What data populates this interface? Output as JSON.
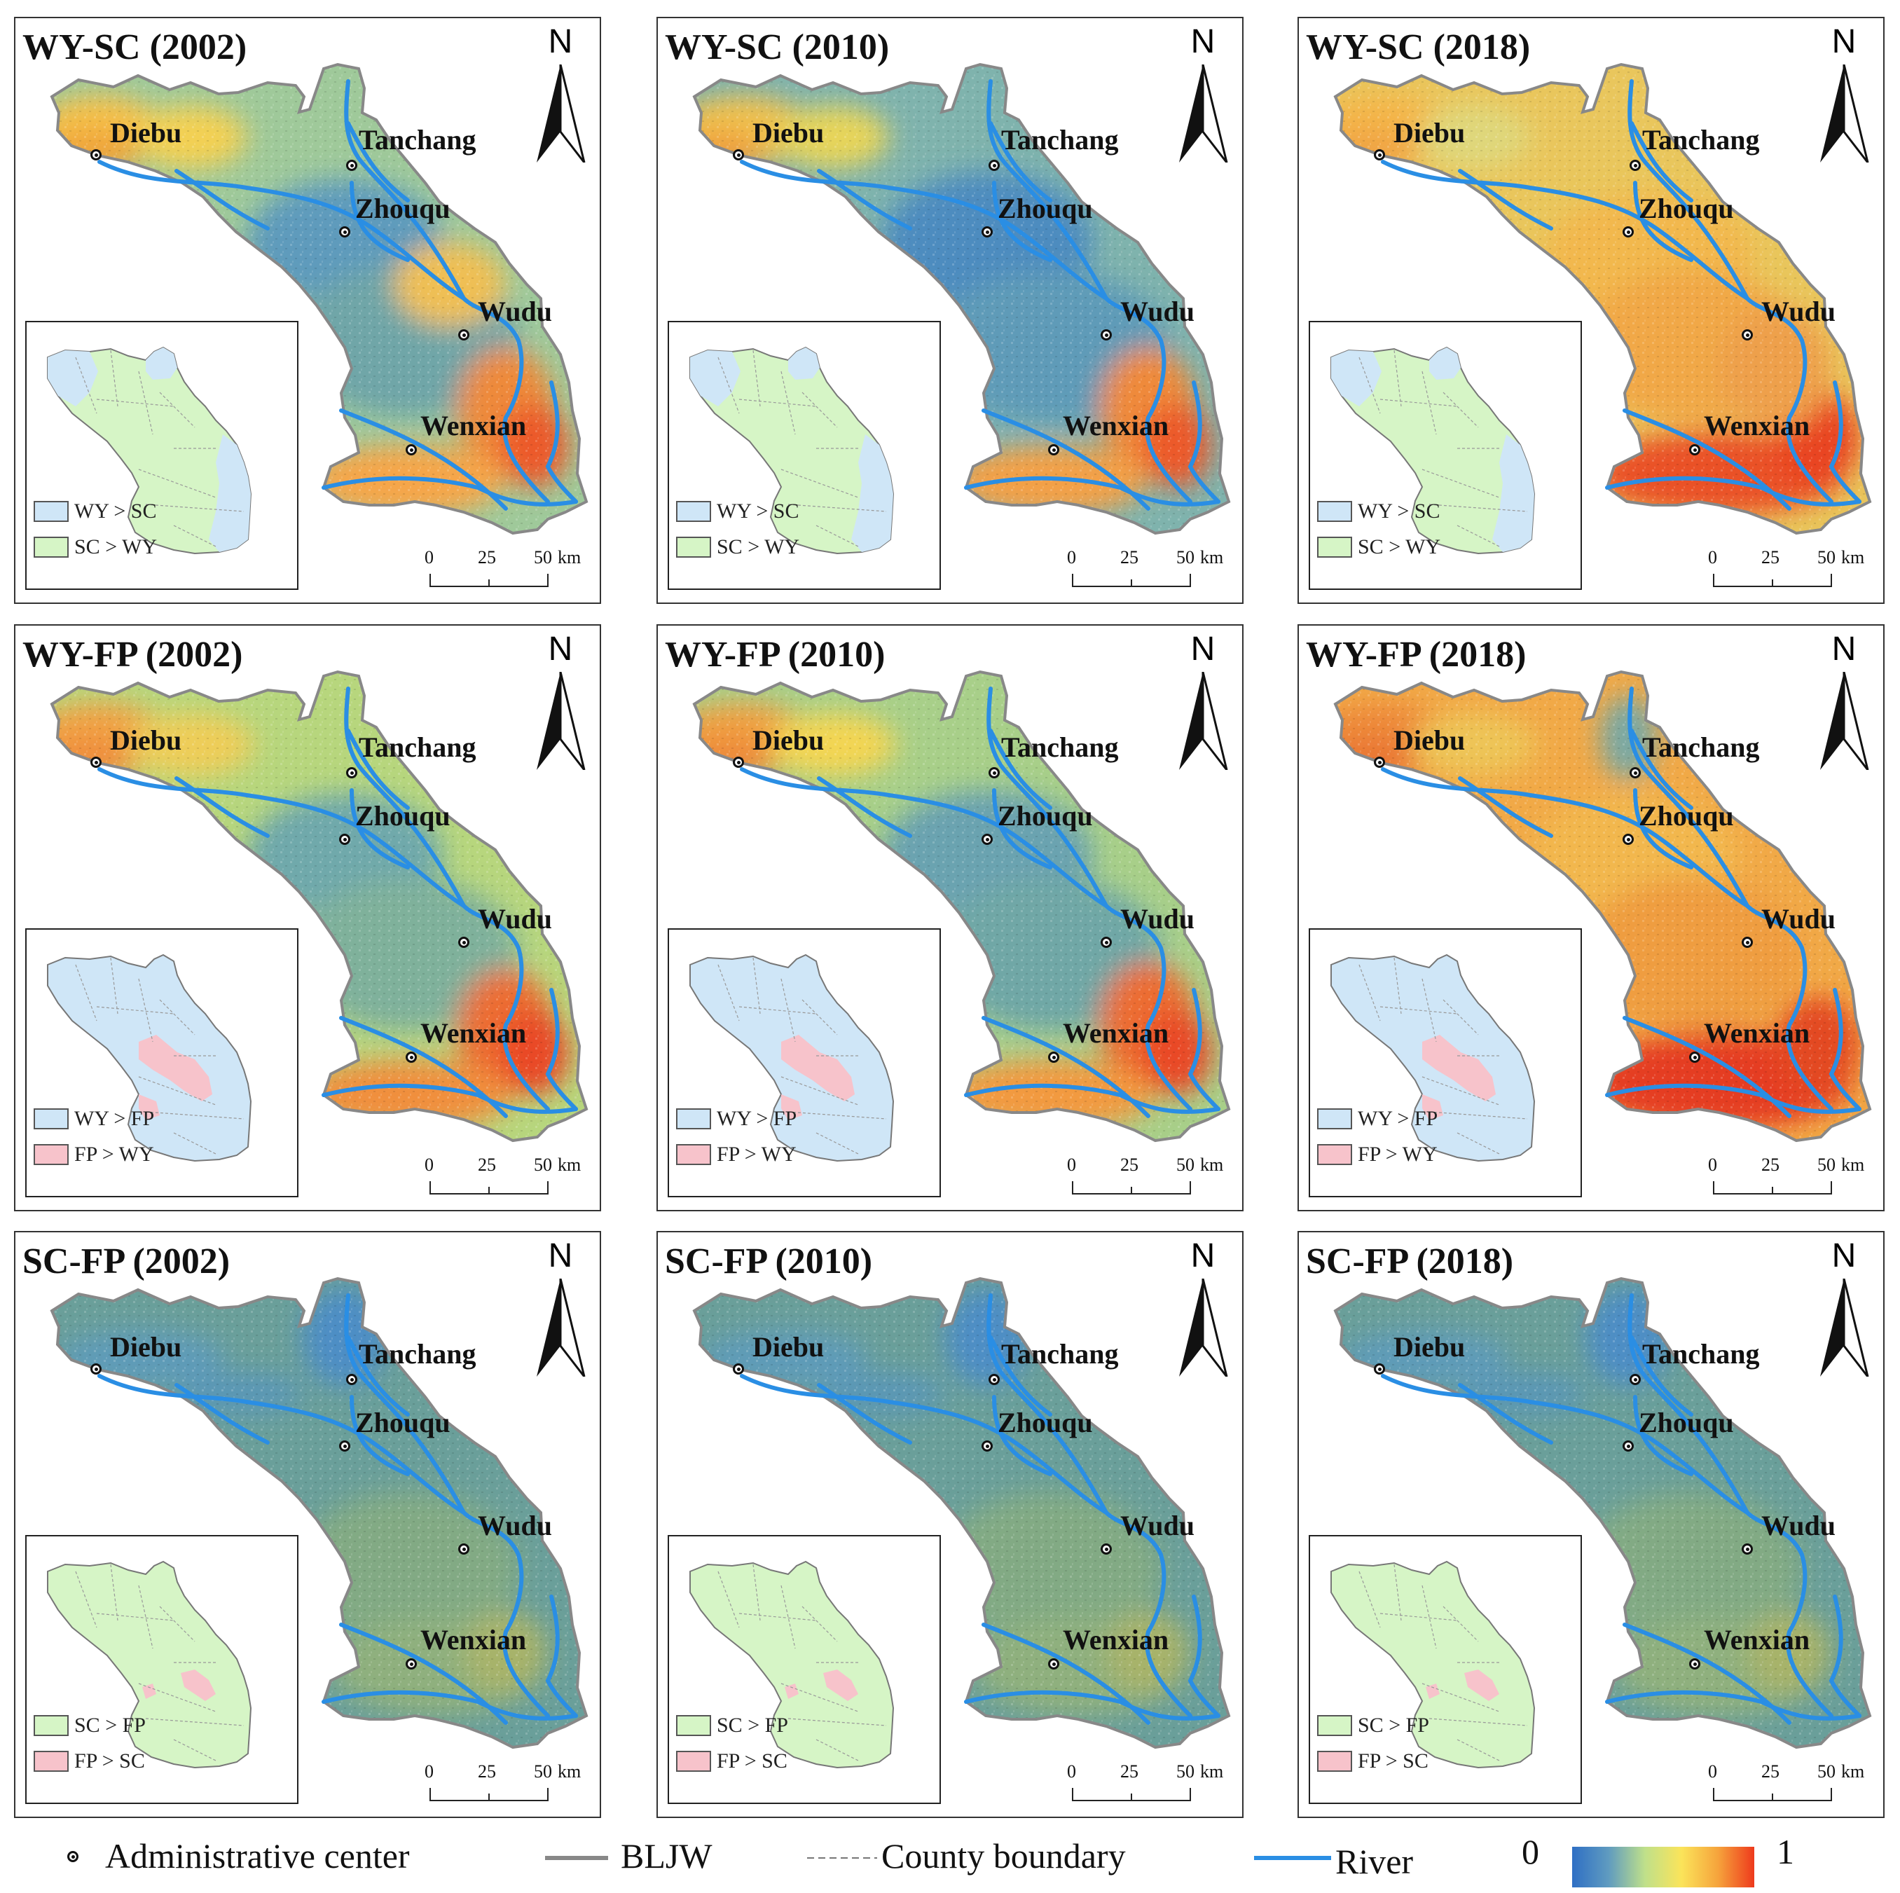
{
  "places": {
    "diebu": "Diebu",
    "tanchang": "Tanchang",
    "zhouqu": "Zhouqu",
    "wudu": "Wudu",
    "wenxian": "Wenxian"
  },
  "north_label": "N",
  "scale": {
    "t0": "0",
    "t25": "25",
    "t50": "50",
    "unit": "km"
  },
  "panels": [
    {
      "title": "WY-SC (2002)",
      "scheme": "wysc1",
      "inset": "sc",
      "leg1": "WY > SC",
      "leg2": "SC > WY"
    },
    {
      "title": "WY-SC (2010)",
      "scheme": "wysc2",
      "inset": "sc",
      "leg1": "WY > SC",
      "leg2": "SC > WY"
    },
    {
      "title": "WY-SC (2018)",
      "scheme": "wysc3",
      "inset": "sc",
      "leg1": "WY > SC",
      "leg2": "SC > WY"
    },
    {
      "title": "WY-FP (2002)",
      "scheme": "wyfp1",
      "inset": "fp",
      "leg1": "WY > FP",
      "leg2": "FP > WY"
    },
    {
      "title": "WY-FP (2010)",
      "scheme": "wyfp2",
      "inset": "fp",
      "leg1": "WY > FP",
      "leg2": "FP > WY"
    },
    {
      "title": "WY-FP (2018)",
      "scheme": "wyfp3",
      "inset": "fp",
      "leg1": "WY > FP",
      "leg2": "FP > WY"
    },
    {
      "title": "SC-FP (2002)",
      "scheme": "scfp",
      "inset": "scfp",
      "leg1": "SC > FP",
      "leg2": "FP > SC"
    },
    {
      "title": "SC-FP (2010)",
      "scheme": "scfp",
      "inset": "scfp",
      "leg1": "SC > FP",
      "leg2": "FP > SC"
    },
    {
      "title": "SC-FP (2018)",
      "scheme": "scfp",
      "inset": "scfp",
      "leg1": "SC > FP",
      "leg2": "FP > SC"
    }
  ],
  "colors": {
    "blue_swatch": "#cfe6f7",
    "green_swatch": "#d6f5c6",
    "pink_swatch": "#f7c3cb",
    "river": "#2a8ee4"
  },
  "legend": {
    "admin": "Administrative center",
    "bljw": "BLJW",
    "county": "County boundary",
    "river": "River",
    "min": "0",
    "max": "1"
  }
}
